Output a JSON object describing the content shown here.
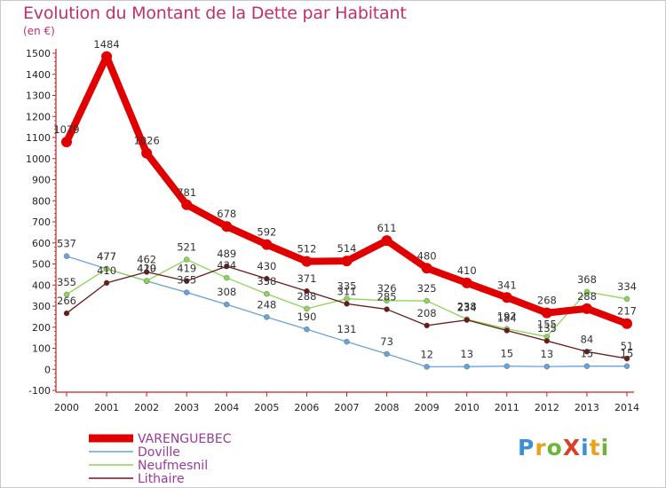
{
  "title": "Evolution du Montant de la Dette par Habitant",
  "subtitle": "(en €)",
  "logo_text": "ProXiti",
  "chart_data": {
    "type": "line",
    "title": "Evolution du Montant de la Dette par Habitant",
    "ylabel": "(en €)",
    "xlabel": "",
    "x": [
      "2000",
      "2001",
      "2002",
      "2003",
      "2004",
      "2005",
      "2006",
      "2007",
      "2008",
      "2009",
      "2010",
      "2011",
      "2012",
      "2013",
      "2014"
    ],
    "ylim": [
      -100,
      1500
    ],
    "yticks": [
      -100,
      0,
      100,
      200,
      300,
      400,
      500,
      600,
      700,
      800,
      900,
      1000,
      1100,
      1200,
      1300,
      1400,
      1500
    ],
    "grid": false,
    "legend_position": "bottom-left",
    "series": [
      {
        "name": "VARENGUEBEC",
        "color": "#e00000",
        "values": [
          1079,
          1484,
          1026,
          781,
          678,
          592,
          512,
          514,
          611,
          480,
          410,
          341,
          268,
          288,
          217
        ]
      },
      {
        "name": "Doville",
        "color": "#6aa3d8",
        "values": [
          537,
          477,
          419,
          365,
          308,
          248,
          190,
          131,
          73,
          12,
          13,
          15,
          13,
          15,
          15
        ]
      },
      {
        "name": "Neufmesnil",
        "color": "#8ed45a",
        "values": [
          355,
          477,
          420,
          521,
          434,
          358,
          288,
          335,
          326,
          325,
          238,
          192,
          155,
          368,
          334
        ]
      },
      {
        "name": "Lithaire",
        "color": "#6b1a1a",
        "values": [
          266,
          410,
          462,
          419,
          489,
          430,
          371,
          311,
          285,
          208,
          234,
          184,
          135,
          84,
          51
        ]
      }
    ]
  }
}
